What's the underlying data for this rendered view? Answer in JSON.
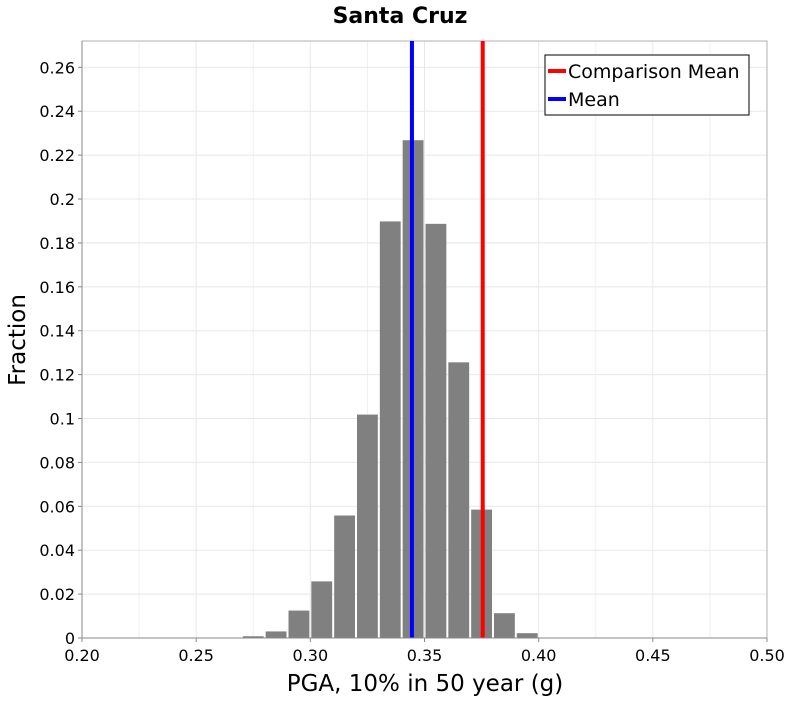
{
  "chart_data": {
    "type": "bar",
    "title": "Santa Cruz",
    "xlabel": "PGA, 10% in 50 year (g)",
    "ylabel": "Fraction",
    "xlim": [
      0.2,
      0.5
    ],
    "ylim": [
      0,
      0.272
    ],
    "bin_width": 0.01,
    "grid": true,
    "x_ticks": [
      {
        "value": 0.2,
        "label": "0.20"
      },
      {
        "value": 0.25,
        "label": "0.25"
      },
      {
        "value": 0.3,
        "label": "0.30"
      },
      {
        "value": 0.35,
        "label": "0.35"
      },
      {
        "value": 0.4,
        "label": "0.40"
      },
      {
        "value": 0.45,
        "label": "0.45"
      },
      {
        "value": 0.5,
        "label": "0.50"
      }
    ],
    "y_ticks": [
      {
        "value": 0,
        "label": "0"
      },
      {
        "value": 0.02,
        "label": "0.02"
      },
      {
        "value": 0.04,
        "label": "0.04"
      },
      {
        "value": 0.06,
        "label": "0.06"
      },
      {
        "value": 0.08,
        "label": "0.08"
      },
      {
        "value": 0.1,
        "label": "0.1"
      },
      {
        "value": 0.12,
        "label": "0.12"
      },
      {
        "value": 0.14,
        "label": "0.14"
      },
      {
        "value": 0.16,
        "label": "0.16"
      },
      {
        "value": 0.18,
        "label": "0.18"
      },
      {
        "value": 0.2,
        "label": "0.2"
      },
      {
        "value": 0.22,
        "label": "0.22"
      },
      {
        "value": 0.24,
        "label": "0.24"
      },
      {
        "value": 0.26,
        "label": "0.26"
      }
    ],
    "bins": [
      {
        "x": 0.275,
        "value": 0.0008
      },
      {
        "x": 0.285,
        "value": 0.003
      },
      {
        "x": 0.295,
        "value": 0.0125
      },
      {
        "x": 0.305,
        "value": 0.0258
      },
      {
        "x": 0.315,
        "value": 0.0558
      },
      {
        "x": 0.325,
        "value": 0.1018
      },
      {
        "x": 0.335,
        "value": 0.1898
      },
      {
        "x": 0.345,
        "value": 0.2268
      },
      {
        "x": 0.355,
        "value": 0.1887
      },
      {
        "x": 0.365,
        "value": 0.1256
      },
      {
        "x": 0.375,
        "value": 0.0585
      },
      {
        "x": 0.385,
        "value": 0.0113
      },
      {
        "x": 0.395,
        "value": 0.0022
      }
    ],
    "bar_color": "#808080",
    "reference_lines": [
      {
        "name": "Comparison Mean",
        "x": 0.3755,
        "color": "#ff0000"
      },
      {
        "name": "Mean",
        "x": 0.3445,
        "color": "#0000ff"
      }
    ],
    "legend_position": "top-right"
  }
}
